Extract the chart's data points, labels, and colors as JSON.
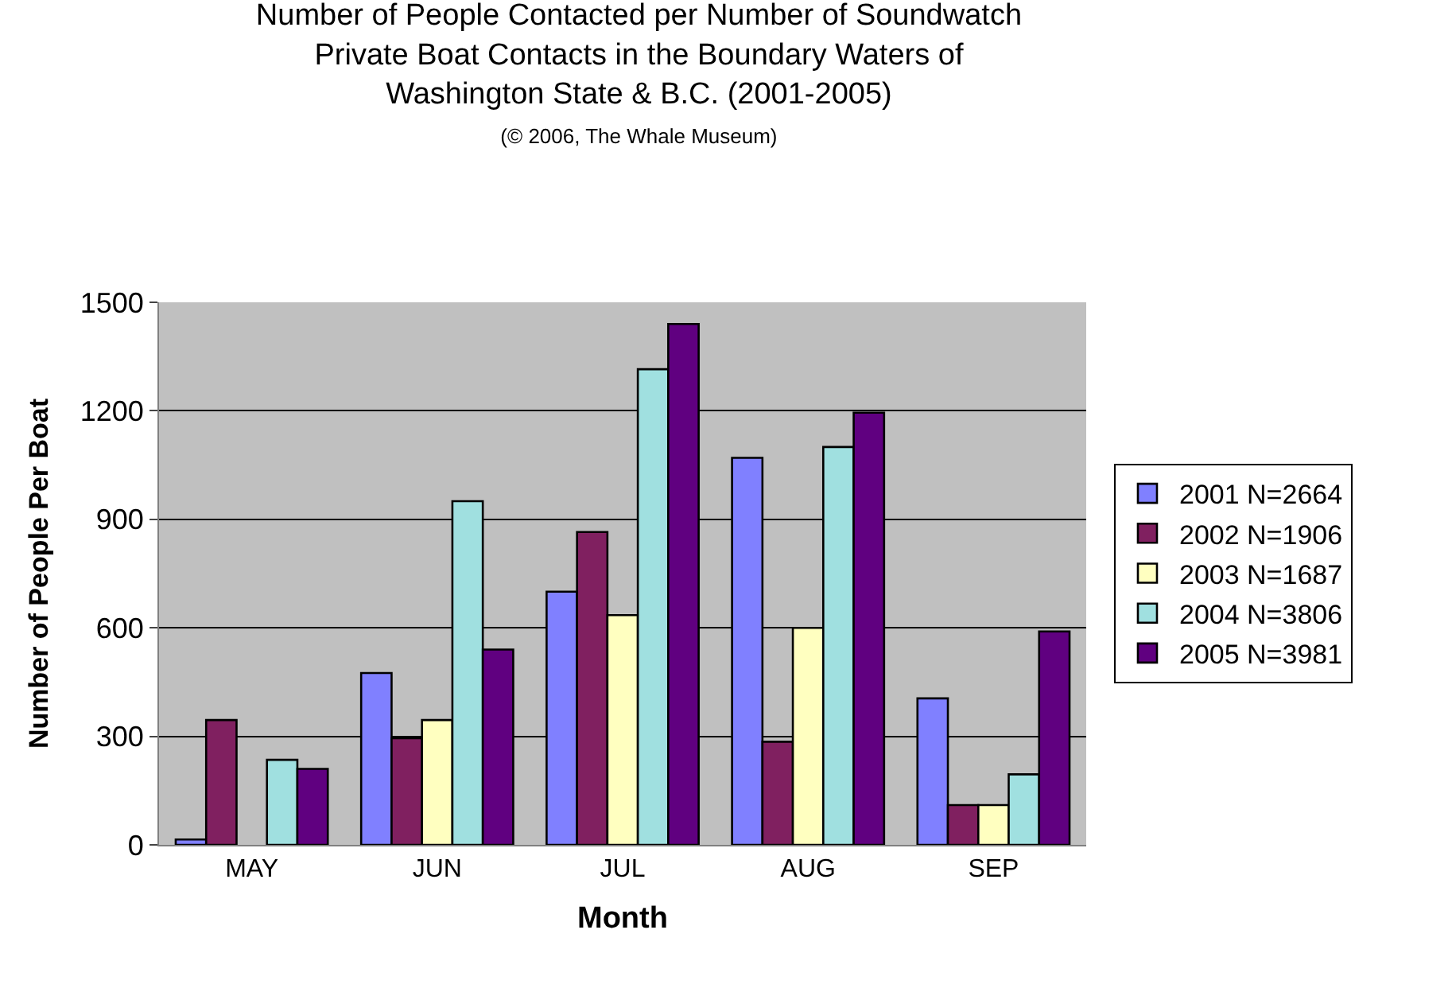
{
  "chart_data": {
    "type": "bar",
    "title": "Number of People Contacted per Number of Soundwatch\nPrivate Boat Contacts in the Boundary Waters of\nWashington State & B.C. (2001-2005)",
    "subtitle": "(© 2006, The Whale Museum)",
    "xlabel": "Month",
    "ylabel": "Number of People Per Boat",
    "categories": [
      "MAY",
      "JUN",
      "JUL",
      "AUG",
      "SEP"
    ],
    "series": [
      {
        "name": "2001 N=2664",
        "color": "#8080ff",
        "values": [
          15,
          475,
          700,
          1070,
          405
        ]
      },
      {
        "name": "2002 N=1906",
        "color": "#802060",
        "values": [
          345,
          295,
          865,
          285,
          110
        ]
      },
      {
        "name": "2003 N=1687",
        "color": "#ffffc0",
        "values": [
          null,
          345,
          635,
          600,
          110
        ]
      },
      {
        "name": "2004 N=3806",
        "color": "#a0e0e0",
        "values": [
          235,
          950,
          1315,
          1100,
          195
        ]
      },
      {
        "name": "2005 N=3981",
        "color": "#600080",
        "values": [
          210,
          540,
          1440,
          1195,
          590
        ]
      }
    ],
    "ylim": [
      0,
      1500
    ],
    "yticks": [
      0,
      300,
      600,
      900,
      1200,
      1500
    ],
    "grid": "y",
    "legend": "right"
  }
}
